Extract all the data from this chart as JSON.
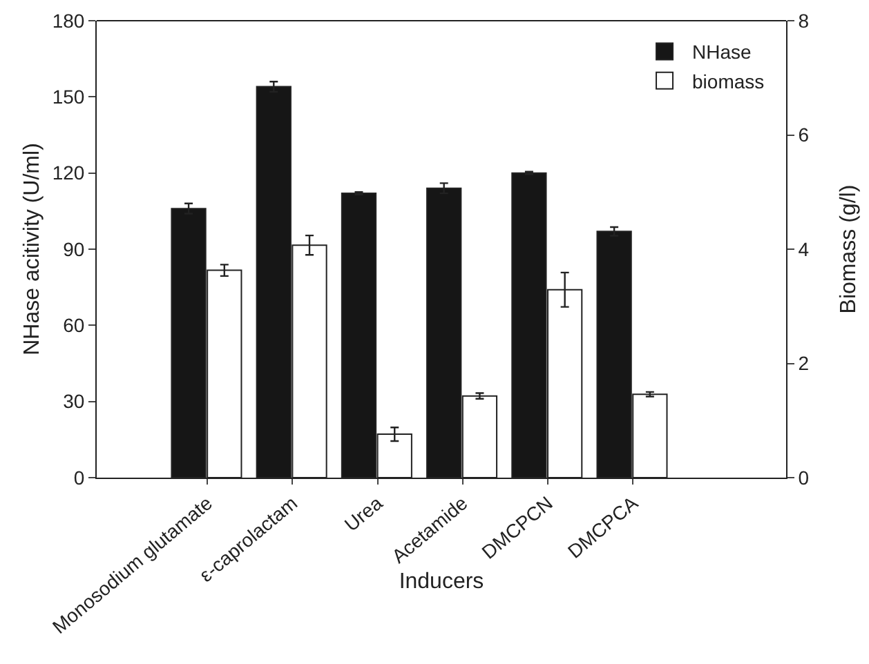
{
  "chart_data": {
    "type": "bar",
    "xlabel": "Inducers",
    "ylabel": "NHase acitivity (U/ml)",
    "y2label": "Biomass (g/l)",
    "categories": [
      "Monosodium glutamate",
      "ε-caprolactam",
      "Urea",
      "Acetamide",
      "DMCPCN",
      "DMCPCA"
    ],
    "series": [
      {
        "name": "NHase",
        "color": "#161616",
        "values": [
          106,
          154,
          112,
          114,
          120,
          97
        ],
        "errors": [
          2,
          2,
          0.5,
          2,
          0.5,
          1.7
        ]
      },
      {
        "name": "biomass",
        "color": "#ffffff",
        "axis": "y2",
        "values": [
          3.63,
          4.07,
          0.76,
          1.43,
          3.29,
          1.46
        ],
        "errors": [
          0.1,
          0.17,
          0.12,
          0.05,
          0.3,
          0.04
        ]
      }
    ],
    "ylim": [
      0,
      180
    ],
    "yticks": [
      0,
      30,
      60,
      90,
      120,
      150,
      180
    ],
    "y2lim": [
      0,
      8
    ],
    "y2ticks": [
      0,
      2,
      4,
      6,
      8
    ],
    "grid": false,
    "legend": "top right"
  }
}
